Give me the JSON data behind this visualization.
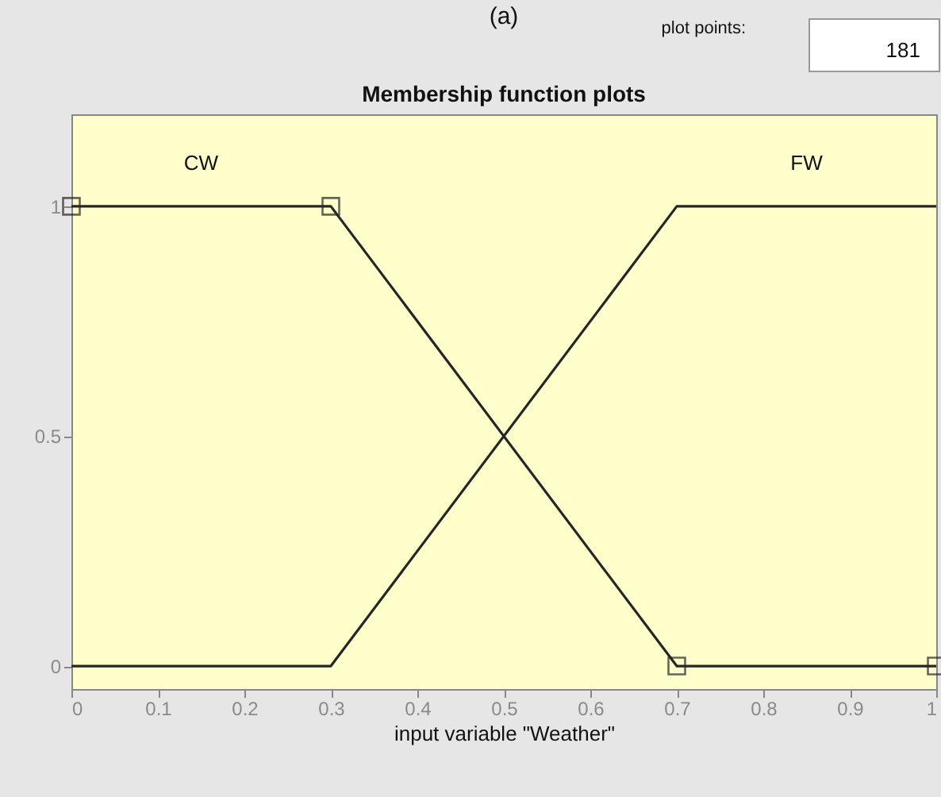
{
  "chart_data": {
    "type": "line",
    "title": "Membership function plots",
    "xlabel": "input variable \"Weather\"",
    "annotations": [
      "(a)",
      "plot points:",
      "181"
    ],
    "series": [
      {
        "name": "CW",
        "color": "#262626",
        "x": [
          0,
          0.3,
          0.7,
          1
        ],
        "values": [
          1,
          1,
          0,
          0
        ]
      },
      {
        "name": "FW",
        "color": "#262626",
        "x": [
          0,
          0.3,
          0.7,
          1
        ],
        "values": [
          0,
          0,
          1,
          1
        ],
        "marker": "none"
      }
    ],
    "xlim": [
      0,
      1
    ],
    "xticks": [
      0,
      0.1,
      0.2,
      0.3,
      0.4,
      0.5,
      0.6,
      0.7,
      0.8,
      0.9,
      1
    ],
    "ylim": [
      -0.05,
      1.2
    ],
    "yticks": [
      0,
      0.5,
      1
    ],
    "grid": false,
    "marker": "square"
  }
}
